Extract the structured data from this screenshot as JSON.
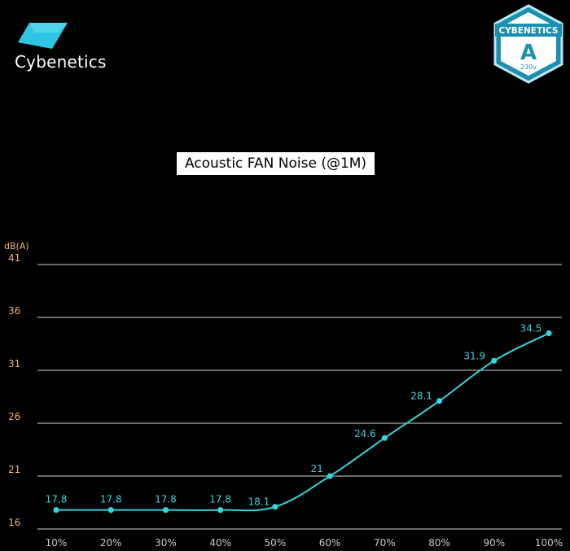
{
  "brand": {
    "name": "Cybenetics"
  },
  "badge": {
    "brand": "CYBENETICS",
    "grade": "A",
    "voltage": "230v"
  },
  "colors": {
    "line": "#33d6de",
    "grid": "#d9d9d9",
    "ytick": "#f0b27a",
    "xtick": "#c8c8c8"
  },
  "chart_data": {
    "type": "line",
    "title": "Acoustic FAN Noise (@1M)",
    "ylabel": "dB(A)",
    "xlabel": "",
    "categories": [
      "10%",
      "20%",
      "30%",
      "40%",
      "50%",
      "60%",
      "70%",
      "80%",
      "90%",
      "100%"
    ],
    "values": [
      17.8,
      17.8,
      17.8,
      17.8,
      18.1,
      21,
      24.6,
      28.1,
      31.9,
      34.5
    ],
    "data_labels": [
      "17.8",
      "17.8",
      "17.8",
      "17.8",
      "18.1",
      "21",
      "24.6",
      "28.1",
      "31.9",
      "34.5"
    ],
    "yticks": [
      16,
      21,
      26,
      31,
      36,
      41
    ],
    "ylim": [
      16,
      41
    ],
    "grid": true,
    "legend": "none"
  }
}
